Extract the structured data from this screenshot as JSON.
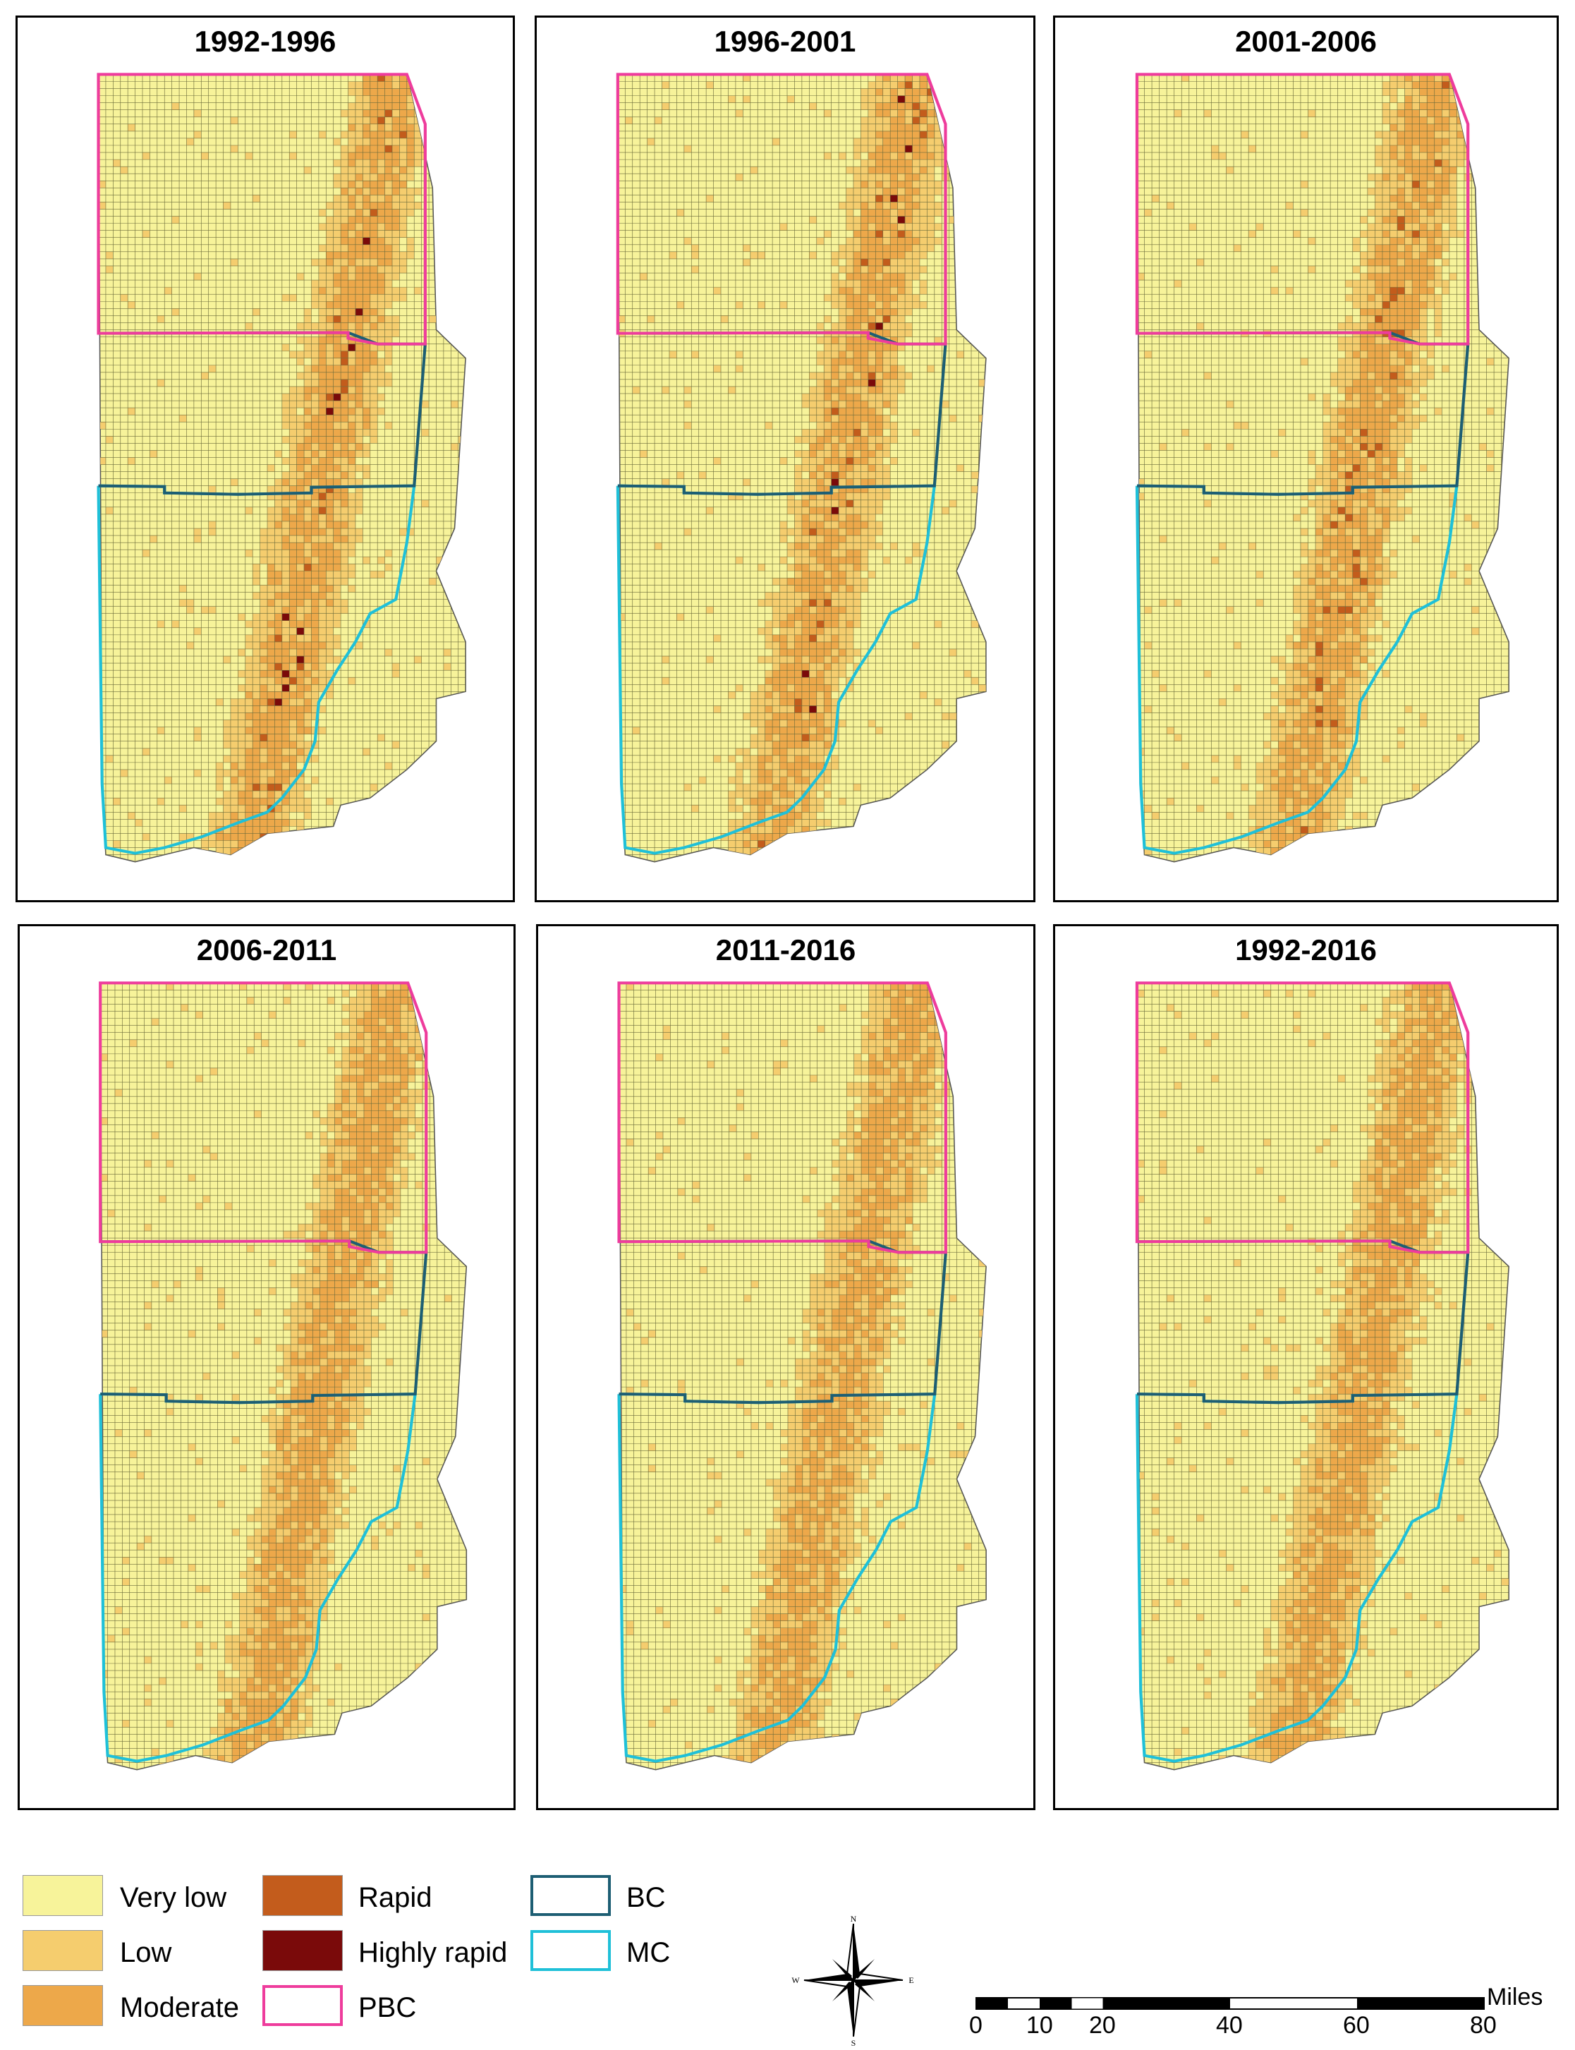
{
  "panels": [
    {
      "title": "1992-1996",
      "intensity": 5
    },
    {
      "title": "1996-2001",
      "intensity": 5
    },
    {
      "title": "2001-2006",
      "intensity": 3
    },
    {
      "title": "2006-2011",
      "intensity": 2
    },
    {
      "title": "2011-2016",
      "intensity": 2
    },
    {
      "title": "1992-2016",
      "intensity": 2
    }
  ],
  "legend": {
    "very_low": "Very low",
    "low": "Low",
    "moderate": "Moderate",
    "rapid": "Rapid",
    "highly_rapid": "Highly rapid",
    "pbc": "PBC",
    "bc": "BC",
    "mc": "MC"
  },
  "colors": {
    "very_low": "#f7f39a",
    "low": "#f5cd6e",
    "moderate": "#eda84a",
    "rapid": "#c35c1c",
    "highly_rapid": "#7a0a0a",
    "pbc": "#ee3c9c",
    "bc": "#1d5e73",
    "mc": "#1fc0d8"
  },
  "north_arrow": {
    "n": "N",
    "s": "S",
    "e": "E",
    "w": "W"
  },
  "scale": {
    "unit": "Miles",
    "ticks": [
      "0",
      "10",
      "20",
      "40",
      "60",
      "80"
    ]
  }
}
